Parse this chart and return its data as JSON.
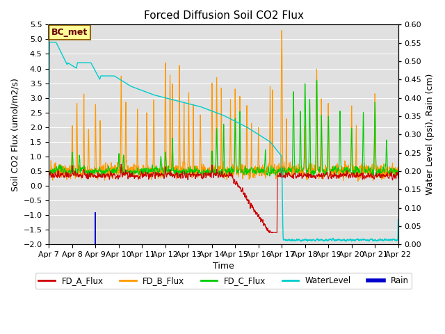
{
  "title": "Forced Diffusion Soil CO2 Flux",
  "xlabel": "Time",
  "ylabel_left": "Soil CO2 Flux (umol/m2/s)",
  "ylabel_right": "Water Level (psi), Rain (cm)",
  "ylim_left": [
    -2.0,
    5.5
  ],
  "ylim_right": [
    0.0,
    0.6
  ],
  "xtick_labels": [
    "Apr 7",
    "Apr 8",
    "Apr 9",
    "Apr 10",
    "Apr 11",
    "Apr 12",
    "Apr 13",
    "Apr 14",
    "Apr 15",
    "Apr 16",
    "Apr 17",
    "Apr 18",
    "Apr 19",
    "Apr 20",
    "Apr 21",
    "Apr 22"
  ],
  "yticks_left": [
    -2.0,
    -1.5,
    -1.0,
    -0.5,
    0.0,
    0.5,
    1.0,
    1.5,
    2.0,
    2.5,
    3.0,
    3.5,
    4.0,
    4.5,
    5.0,
    5.5
  ],
  "yticks_right": [
    0.0,
    0.05,
    0.1,
    0.15,
    0.2,
    0.25,
    0.3,
    0.35,
    0.4,
    0.45,
    0.5,
    0.55,
    0.6
  ],
  "colors": {
    "FD_A": "#cc0000",
    "FD_B": "#ff9900",
    "FD_C": "#00cc00",
    "WaterLevel": "#00cccc",
    "Rain": "#0000cc",
    "background": "#e0e0e0",
    "grid": "#ffffff",
    "annotation_bg": "#ffff99",
    "annotation_border": "#996600",
    "annotation_text": "#660000"
  },
  "annotation": "BC_met",
  "figsize": [
    6.4,
    4.8
  ],
  "dpi": 100
}
